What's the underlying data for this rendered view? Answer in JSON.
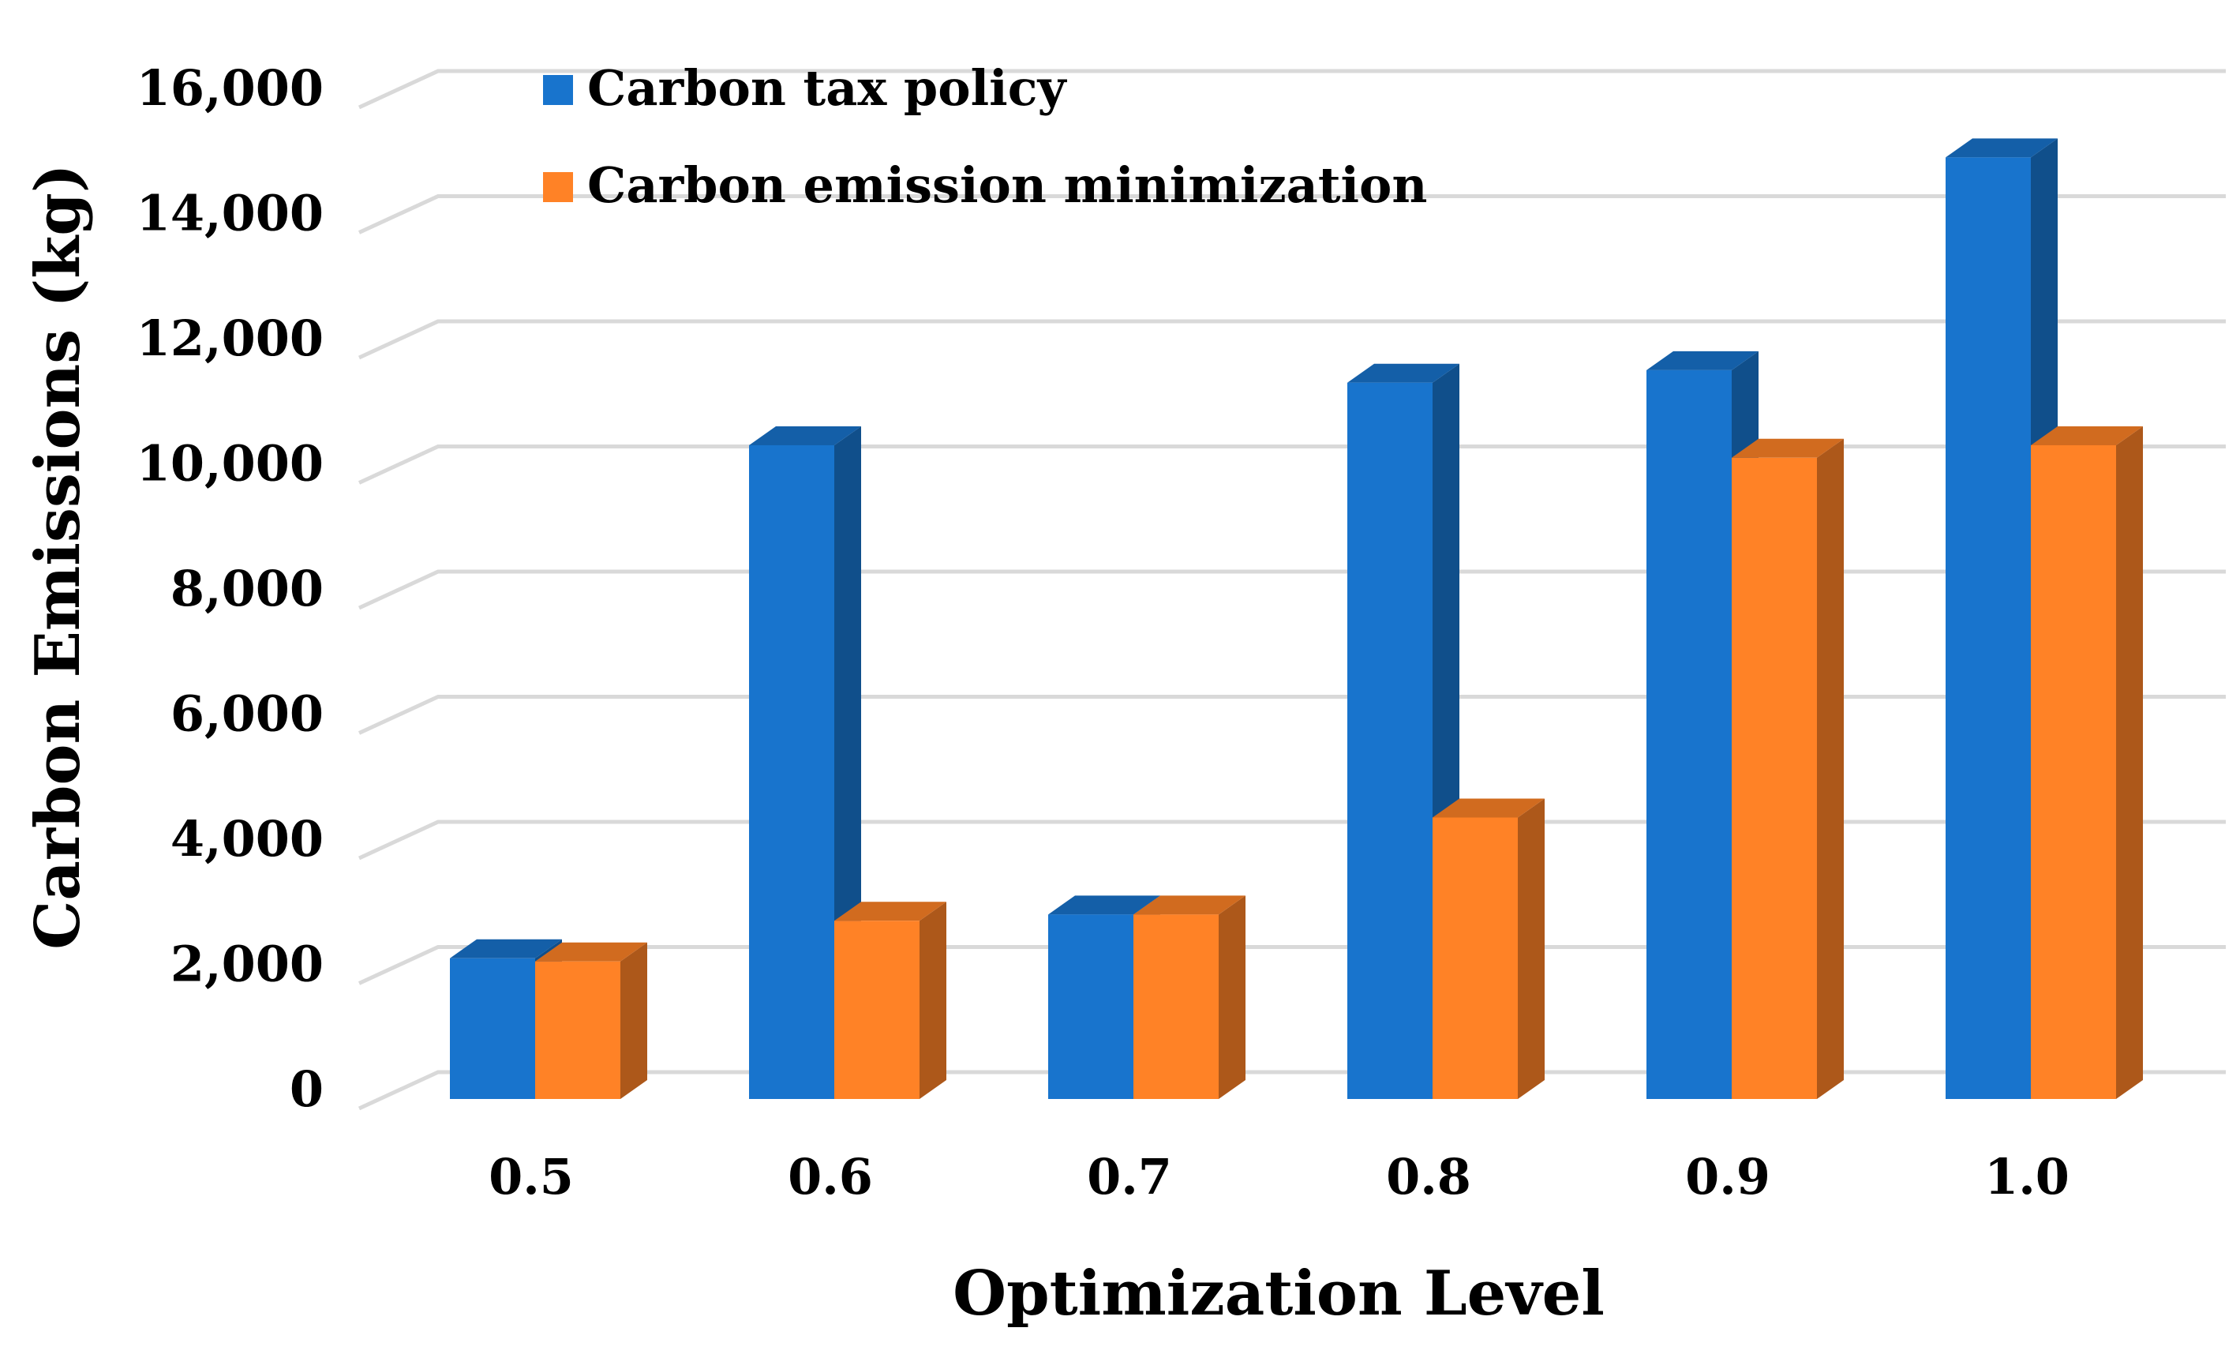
{
  "chart_data": {
    "type": "bar",
    "title": "",
    "xlabel": "Optimization Level",
    "ylabel": "Carbon Emissions (kg)",
    "categories": [
      "0.5",
      "0.6",
      "0.7",
      "0.8",
      "0.9",
      "1.0"
    ],
    "ylim": [
      0,
      16000
    ],
    "yticks": [
      0,
      2000,
      4000,
      6000,
      8000,
      10000,
      12000,
      14000,
      16000
    ],
    "ytick_labels": [
      "0",
      "2,000",
      "4,000",
      "6,000",
      "8,000",
      "10,000",
      "12,000",
      "14,000",
      "16,000"
    ],
    "grid": true,
    "legend": "top-left",
    "series": [
      {
        "name": "Carbon tax policy",
        "color": "#1874cd",
        "values": [
          2400,
          10600,
          3100,
          11600,
          11800,
          15200
        ]
      },
      {
        "name": "Carbon emission minimization",
        "color": "#ff8226",
        "values": [
          2350,
          3000,
          3100,
          4650,
          10400,
          10600
        ]
      }
    ]
  }
}
